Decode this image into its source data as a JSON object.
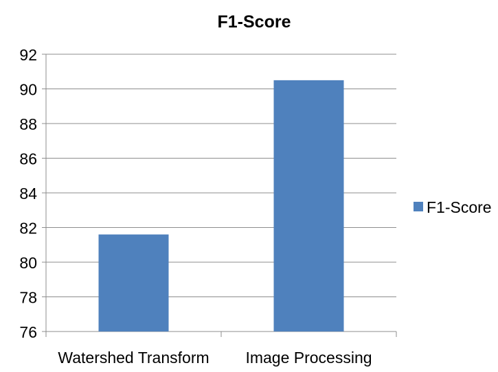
{
  "chart_data": {
    "type": "bar",
    "title": "F1-Score",
    "categories": [
      "Watershed Transform",
      "Image Processing"
    ],
    "series": [
      {
        "name": "F1-Score",
        "values": [
          81.6,
          90.5
        ],
        "color": "#4F81BD"
      }
    ],
    "ylim": [
      76,
      92
    ],
    "yticks": [
      76,
      78,
      80,
      82,
      84,
      86,
      88,
      90,
      92
    ],
    "grid": true,
    "legend_position": "right"
  }
}
